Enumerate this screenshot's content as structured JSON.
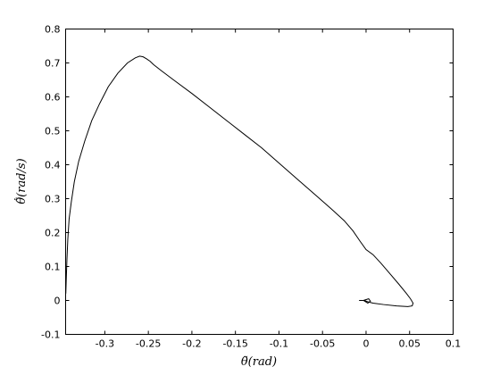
{
  "chart_data": {
    "type": "line",
    "title": "",
    "xlabel": "θ̃(rad)",
    "ylabel": "θ̃̇(rad/s)",
    "xlim": [
      -0.345,
      0.1
    ],
    "ylim": [
      -0.1,
      0.8
    ],
    "grid": false,
    "x_ticks": [
      -0.3,
      -0.25,
      -0.2,
      -0.15,
      -0.1,
      -0.05,
      0,
      0.05,
      0.1
    ],
    "x_tick_labels": [
      "-0.3",
      "-0.25",
      "-0.2",
      "-0.15",
      "-0.1",
      "-0.05",
      "0",
      "0.05",
      "0.1"
    ],
    "y_ticks": [
      -0.1,
      0,
      0.1,
      0.2,
      0.3,
      0.4,
      0.5,
      0.6,
      0.7,
      0.8
    ],
    "y_tick_labels": [
      "-0.1",
      "0",
      "0.1",
      "0.2",
      "0.3",
      "0.4",
      "0.5",
      "0.6",
      "0.7",
      "0.8"
    ],
    "series": [
      {
        "color": "#000000",
        "x": [
          -0.3448,
          -0.3443,
          -0.3435,
          -0.3425,
          -0.341,
          -0.3385,
          -0.335,
          -0.33,
          -0.323,
          -0.315,
          -0.306,
          -0.296,
          -0.285,
          -0.274,
          -0.265,
          -0.26,
          -0.256,
          -0.252,
          -0.248,
          -0.244,
          -0.235,
          -0.22,
          -0.2,
          -0.18,
          -0.16,
          -0.14,
          -0.12,
          -0.1,
          -0.08,
          -0.06,
          -0.04,
          -0.025,
          -0.015,
          -0.007,
          0.0,
          0.008,
          0.017,
          0.027,
          0.037,
          0.046,
          0.051,
          0.054,
          0.053,
          0.048,
          0.035,
          0.02,
          0.008,
          0.002,
          -0.002,
          -0.008,
          -0.003,
          0.003,
          0.005,
          0.002,
          -0.003
        ],
        "y": [
          0.02,
          0.06,
          0.12,
          0.18,
          0.24,
          0.29,
          0.35,
          0.41,
          0.47,
          0.53,
          0.58,
          0.63,
          0.67,
          0.7,
          0.715,
          0.72,
          0.718,
          0.712,
          0.705,
          0.695,
          0.677,
          0.648,
          0.61,
          0.57,
          0.53,
          0.49,
          0.45,
          0.405,
          0.36,
          0.315,
          0.27,
          0.235,
          0.205,
          0.175,
          0.15,
          0.135,
          0.11,
          0.08,
          0.05,
          0.022,
          0.005,
          -0.008,
          -0.016,
          -0.018,
          -0.016,
          -0.012,
          -0.008,
          -0.004,
          0.0,
          0.0,
          0.0,
          0.005,
          -0.002,
          -0.008,
          0.0
        ]
      }
    ]
  }
}
